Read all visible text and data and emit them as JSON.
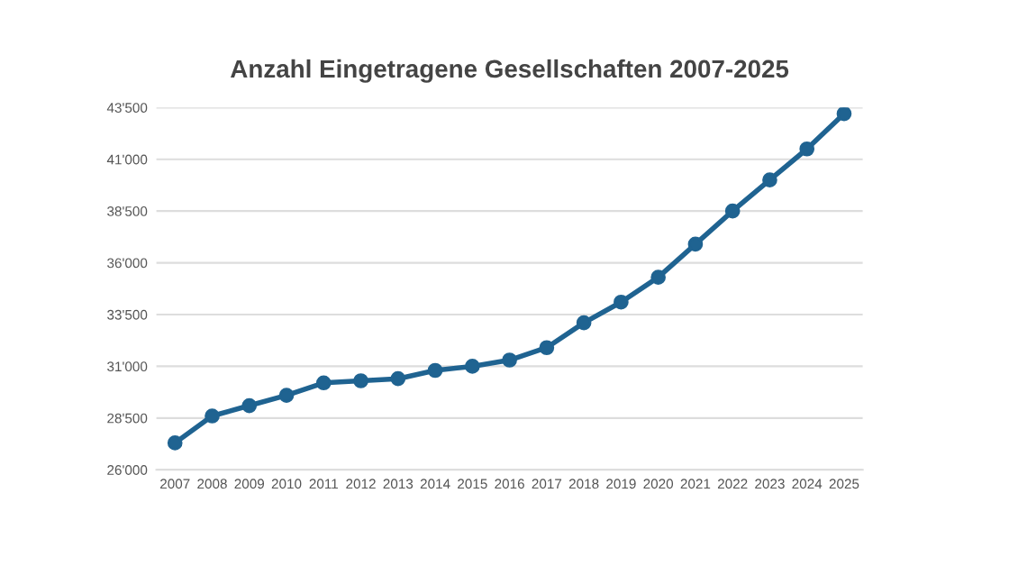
{
  "chart_data": {
    "type": "line",
    "title": "Anzahl Eingetragene Gesellschaften 2007-2025",
    "categories": [
      "2007",
      "2008",
      "2009",
      "2010",
      "2011",
      "2012",
      "2013",
      "2014",
      "2015",
      "2016",
      "2017",
      "2018",
      "2019",
      "2020",
      "2021",
      "2022",
      "2023",
      "2024",
      "2025"
    ],
    "series": [
      {
        "color": "#1f6391",
        "values": [
          27300,
          28600,
          29100,
          29600,
          30200,
          30300,
          30400,
          30800,
          31000,
          31300,
          31900,
          33100,
          34100,
          35300,
          36900,
          38500,
          40000,
          41500,
          43200
        ]
      }
    ],
    "ylim": [
      26000,
      43500
    ],
    "yticks": [
      {
        "value": 26000,
        "label": "26'000"
      },
      {
        "value": 28500,
        "label": "28'500"
      },
      {
        "value": 31000,
        "label": "31'000"
      },
      {
        "value": 33500,
        "label": "33'500"
      },
      {
        "value": 36000,
        "label": "36'000"
      },
      {
        "value": 38500,
        "label": "38'500"
      },
      {
        "value": 41000,
        "label": "41'000"
      },
      {
        "value": 43500,
        "label": "43'500"
      }
    ],
    "grid": "y",
    "marker": "circle",
    "line_style": "solid"
  }
}
